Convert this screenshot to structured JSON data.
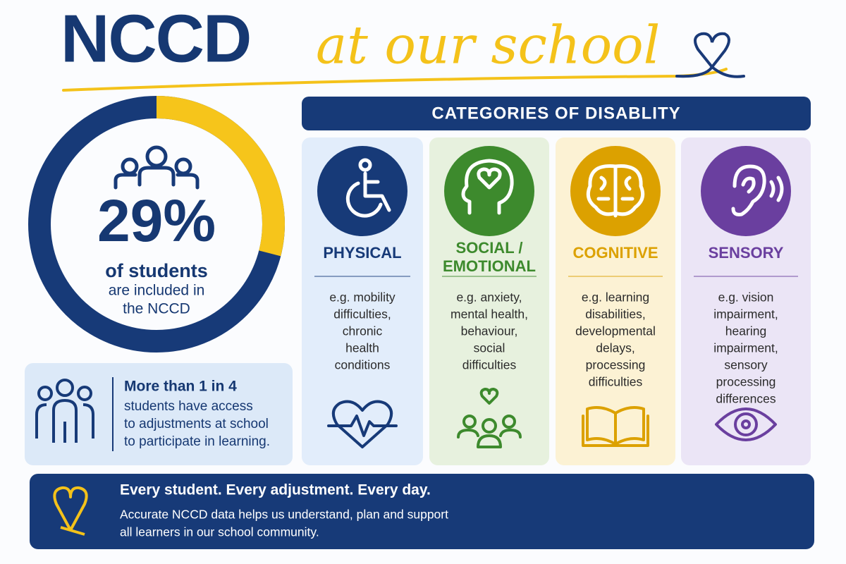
{
  "header": {
    "title_main": "NCCD",
    "title_script": "at our school"
  },
  "stat": {
    "percent": {
      "value": 29,
      "label": "29%"
    },
    "caption_bold": "of students",
    "caption_lines": [
      "are included in",
      "the NCCD"
    ]
  },
  "info_box": {
    "title": "More than 1 in 4",
    "lines": [
      "students have access",
      "to adjustments at school",
      "to participate in learning."
    ]
  },
  "categories": {
    "heading": "CATEGORIES OF DISABLITY",
    "items": [
      {
        "name": [
          "PHYSICAL"
        ],
        "examples": [
          "e.g. mobility",
          "difficulties,",
          "chronic",
          "health",
          "conditions"
        ]
      },
      {
        "name": [
          "SOCIAL /",
          "EMOTIONAL"
        ],
        "examples": [
          "e.g. anxiety,",
          "mental health,",
          "behaviour,",
          "social",
          "difficulties"
        ]
      },
      {
        "name": [
          "COGNITIVE"
        ],
        "examples": [
          "e.g. learning",
          "disabilities,",
          "developmental",
          "delays,",
          "processing",
          "difficulties"
        ]
      },
      {
        "name": [
          "SENSORY"
        ],
        "examples": [
          "e.g. vision",
          "impairment,",
          "hearing",
          "impairment,",
          "sensory",
          "processing",
          "differences"
        ]
      }
    ]
  },
  "footer": {
    "title": "Every student. Every adjustment. Every day.",
    "lines": [
      "Accurate NCCD data helps us understand, plan and support",
      "all learners in our school community."
    ]
  }
}
